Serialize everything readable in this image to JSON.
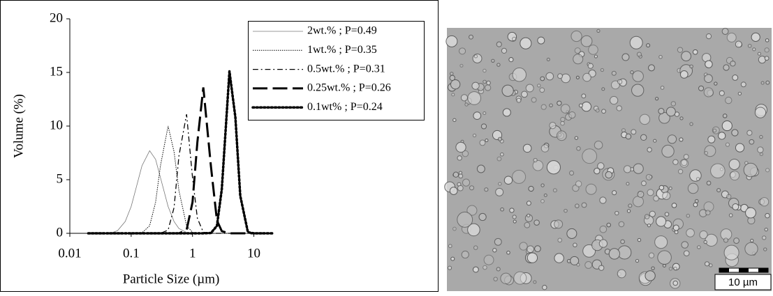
{
  "chart_data": {
    "type": "line",
    "xlabel": "Particle Size (µm)",
    "ylabel": "Volume (%)",
    "x": [
      0.02,
      0.03,
      0.04,
      0.05,
      0.06,
      0.08,
      0.1,
      0.12,
      0.15,
      0.2,
      0.25,
      0.3,
      0.4,
      0.5,
      0.6,
      0.8,
      1,
      1.2,
      1.5,
      2,
      2.5,
      3,
      4,
      5,
      6,
      8,
      10,
      12,
      15,
      20
    ],
    "xscale": "log",
    "xlim": [
      0.01,
      20
    ],
    "xticks": [
      0.01,
      0.1,
      1,
      10
    ],
    "ylim": [
      0,
      20
    ],
    "yticks": [
      0,
      5,
      10,
      15,
      20
    ],
    "grid": false,
    "legend": "upper right",
    "series": [
      {
        "name": "2wt.% ; P=0.49",
        "color": "#777777",
        "style": "solid",
        "linewidth": 0.8,
        "values": [
          0,
          0,
          0.02,
          0.08,
          0.25,
          1.1,
          2.5,
          4.2,
          6.3,
          7.7,
          6.9,
          5.2,
          2.5,
          1.1,
          0.45,
          0.08,
          0.02,
          0,
          0,
          0,
          0,
          0,
          0,
          0,
          0,
          0,
          0,
          0,
          0,
          0
        ]
      },
      {
        "name": "1wt.% ; P=0.35",
        "color": "#000000",
        "style": "dotted",
        "linewidth": 1,
        "values": [
          0,
          0,
          0,
          0,
          0,
          0,
          0,
          0,
          0.05,
          0.7,
          2.9,
          6.3,
          10,
          7.6,
          4.0,
          0.7,
          0.1,
          0,
          0,
          0,
          0,
          0,
          0,
          0,
          0,
          0,
          0,
          0,
          0,
          0
        ]
      },
      {
        "name": "0.5wt.% ; P=0.31",
        "color": "#000000",
        "style": "dashdot",
        "linewidth": 1.3,
        "values": [
          0,
          0,
          0,
          0,
          0,
          0,
          0,
          0,
          0,
          0,
          0,
          0,
          0.3,
          2.4,
          7.2,
          11.1,
          5.2,
          1.4,
          0.1,
          0,
          0,
          0,
          0,
          0,
          0,
          0,
          0,
          0,
          0,
          0
        ]
      },
      {
        "name": "0.25wt.% ; P=0.26",
        "color": "#000000",
        "style": "dashed",
        "linewidth": 3,
        "values": [
          0,
          0,
          0,
          0,
          0,
          0,
          0,
          0,
          0,
          0,
          0,
          0,
          0,
          0,
          0,
          0.3,
          2.9,
          8.5,
          13.6,
          6.2,
          1.2,
          0.2,
          0,
          0,
          0,
          0,
          0,
          0,
          0,
          0
        ]
      },
      {
        "name": "0.1wt% ; P=0.24",
        "color": "#000000",
        "style": "dotted",
        "linewidth": 3.5,
        "values": [
          0,
          0,
          0,
          0,
          0,
          0,
          0,
          0,
          0,
          0,
          0,
          0,
          0,
          0,
          0,
          0,
          0,
          0,
          0,
          0.03,
          0.7,
          4.1,
          15.1,
          10.8,
          3.5,
          0.1,
          0,
          0,
          0,
          0
        ]
      }
    ]
  },
  "image": {
    "scale_label": "10 µm"
  }
}
